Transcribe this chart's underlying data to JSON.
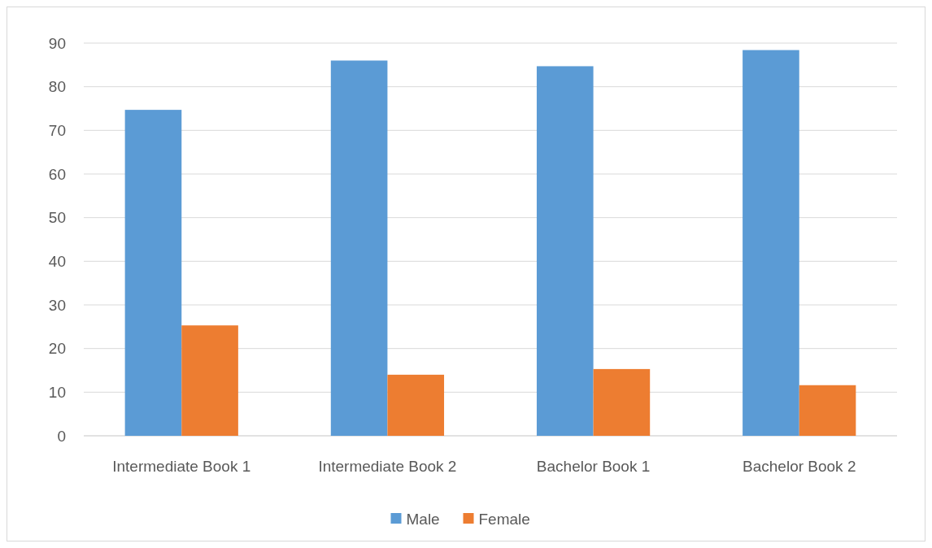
{
  "chart_data": {
    "type": "bar",
    "categories": [
      "Intermediate Book 1",
      "Intermediate Book 2",
      "Bachelor Book 1",
      "Bachelor Book 2"
    ],
    "series": [
      {
        "name": "Male",
        "color": "#5b9bd5",
        "values": [
          74.7,
          86,
          84.7,
          88.4
        ]
      },
      {
        "name": "Female",
        "color": "#ed7d31",
        "values": [
          25.3,
          14,
          15.3,
          11.6
        ]
      }
    ],
    "ylim": [
      0,
      90
    ],
    "yticks": [
      0,
      10,
      20,
      30,
      40,
      50,
      60,
      70,
      80,
      90
    ],
    "grid": "y",
    "legend": "bottom"
  }
}
